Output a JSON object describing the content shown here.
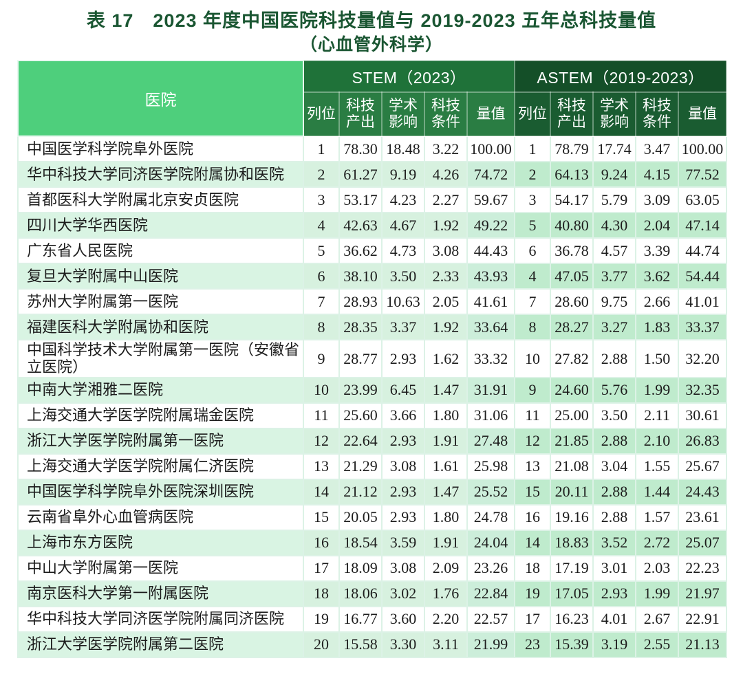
{
  "page": {
    "title": "表 17　2023 年度中国医院科技量值与 2019-2023 五年总科技量值",
    "subtitle": "（心血管外科学）"
  },
  "table": {
    "hospital_header": "医院",
    "group_headers": {
      "stem": "STEM（2023）",
      "astem": "ASTEM（2019-2023）"
    },
    "sub_headers": [
      "列位",
      "科技产出",
      "学术影响",
      "科技条件",
      "量值"
    ],
    "sub_header_keys": [
      "rank",
      "sci-output",
      "academic-influence",
      "sci-condition",
      "value"
    ],
    "rows": [
      {
        "hospital": "中国医学科学院阜外医院",
        "stem": [
          "1",
          "78.30",
          "18.48",
          "3.22",
          "100.00"
        ],
        "astem": [
          "1",
          "78.79",
          "17.74",
          "3.47",
          "100.00"
        ]
      },
      {
        "hospital": "华中科技大学同济医学院附属协和医院",
        "stem": [
          "2",
          "61.27",
          "9.19",
          "4.26",
          "74.72"
        ],
        "astem": [
          "2",
          "64.13",
          "9.24",
          "4.15",
          "77.52"
        ]
      },
      {
        "hospital": "首都医科大学附属北京安贞医院",
        "stem": [
          "3",
          "53.17",
          "4.23",
          "2.27",
          "59.67"
        ],
        "astem": [
          "3",
          "54.17",
          "5.79",
          "3.09",
          "63.05"
        ]
      },
      {
        "hospital": "四川大学华西医院",
        "stem": [
          "4",
          "42.63",
          "4.67",
          "1.92",
          "49.22"
        ],
        "astem": [
          "5",
          "40.80",
          "4.30",
          "2.04",
          "47.14"
        ]
      },
      {
        "hospital": "广东省人民医院",
        "stem": [
          "5",
          "36.62",
          "4.73",
          "3.08",
          "44.43"
        ],
        "astem": [
          "6",
          "36.78",
          "4.57",
          "3.39",
          "44.74"
        ]
      },
      {
        "hospital": "复旦大学附属中山医院",
        "stem": [
          "6",
          "38.10",
          "3.50",
          "2.33",
          "43.93"
        ],
        "astem": [
          "4",
          "47.05",
          "3.77",
          "3.62",
          "54.44"
        ]
      },
      {
        "hospital": "苏州大学附属第一医院",
        "stem": [
          "7",
          "28.93",
          "10.63",
          "2.05",
          "41.61"
        ],
        "astem": [
          "7",
          "28.60",
          "9.75",
          "2.66",
          "41.01"
        ]
      },
      {
        "hospital": "福建医科大学附属协和医院",
        "stem": [
          "8",
          "28.35",
          "3.37",
          "1.92",
          "33.64"
        ],
        "astem": [
          "8",
          "28.27",
          "3.27",
          "1.83",
          "33.37"
        ]
      },
      {
        "hospital": "中国科学技术大学附属第一医院（安徽省立医院）",
        "stem": [
          "9",
          "28.77",
          "2.93",
          "1.62",
          "33.32"
        ],
        "astem": [
          "10",
          "27.82",
          "2.88",
          "1.50",
          "32.20"
        ]
      },
      {
        "hospital": "中南大学湘雅二医院",
        "stem": [
          "10",
          "23.99",
          "6.45",
          "1.47",
          "31.91"
        ],
        "astem": [
          "9",
          "24.60",
          "5.76",
          "1.99",
          "32.35"
        ]
      },
      {
        "hospital": "上海交通大学医学院附属瑞金医院",
        "stem": [
          "11",
          "25.60",
          "3.66",
          "1.80",
          "31.06"
        ],
        "astem": [
          "11",
          "25.00",
          "3.50",
          "2.11",
          "30.61"
        ]
      },
      {
        "hospital": "浙江大学医学院附属第一医院",
        "stem": [
          "12",
          "22.64",
          "2.93",
          "1.91",
          "27.48"
        ],
        "astem": [
          "12",
          "21.85",
          "2.88",
          "2.10",
          "26.83"
        ]
      },
      {
        "hospital": "上海交通大学医学院附属仁济医院",
        "stem": [
          "13",
          "21.29",
          "3.08",
          "1.61",
          "25.98"
        ],
        "astem": [
          "13",
          "21.08",
          "3.04",
          "1.55",
          "25.67"
        ]
      },
      {
        "hospital": "中国医学科学院阜外医院深圳医院",
        "stem": [
          "14",
          "21.12",
          "2.93",
          "1.47",
          "25.52"
        ],
        "astem": [
          "15",
          "20.11",
          "2.88",
          "1.44",
          "24.43"
        ]
      },
      {
        "hospital": "云南省阜外心血管病医院",
        "stem": [
          "15",
          "20.05",
          "2.93",
          "1.80",
          "24.78"
        ],
        "astem": [
          "16",
          "19.16",
          "2.88",
          "1.57",
          "23.61"
        ]
      },
      {
        "hospital": "上海市东方医院",
        "stem": [
          "16",
          "18.54",
          "3.59",
          "1.91",
          "24.04"
        ],
        "astem": [
          "14",
          "18.83",
          "3.52",
          "2.72",
          "25.07"
        ]
      },
      {
        "hospital": "中山大学附属第一医院",
        "stem": [
          "17",
          "18.09",
          "3.08",
          "2.09",
          "23.26"
        ],
        "astem": [
          "18",
          "17.19",
          "3.01",
          "2.03",
          "22.23"
        ]
      },
      {
        "hospital": "南京医科大学第一附属医院",
        "stem": [
          "18",
          "18.06",
          "3.02",
          "1.76",
          "22.84"
        ],
        "astem": [
          "19",
          "17.05",
          "2.93",
          "1.99",
          "21.97"
        ]
      },
      {
        "hospital": "华中科技大学同济医学院附属同济医院",
        "stem": [
          "19",
          "16.77",
          "3.60",
          "2.20",
          "22.57"
        ],
        "astem": [
          "17",
          "16.23",
          "4.01",
          "2.67",
          "22.91"
        ]
      },
      {
        "hospital": "浙江大学医学院附属第二医院",
        "stem": [
          "20",
          "15.58",
          "3.30",
          "3.11",
          "21.99"
        ],
        "astem": [
          "23",
          "15.39",
          "3.19",
          "2.55",
          "21.13"
        ]
      }
    ]
  },
  "colors": {
    "title_text": "#1a5632",
    "hospital_header_bg": "#4ecf7c",
    "stem_group_header_bg": "#1f7239",
    "stem_sub_header_bg": "#2a7d43",
    "astem_group_header_bg": "#144f28",
    "astem_sub_header_bg": "#1a5c31",
    "even_row_bg": "#d9f4e3",
    "even_row_stem_bg": "#d7f1df",
    "even_row_stem_value_bg": "#cceeda",
    "even_row_astem_bg": "#bfebcd",
    "cell_border": "#dcf2e6",
    "header_text": "#ffffff",
    "body_text": "#1c1c1c"
  }
}
